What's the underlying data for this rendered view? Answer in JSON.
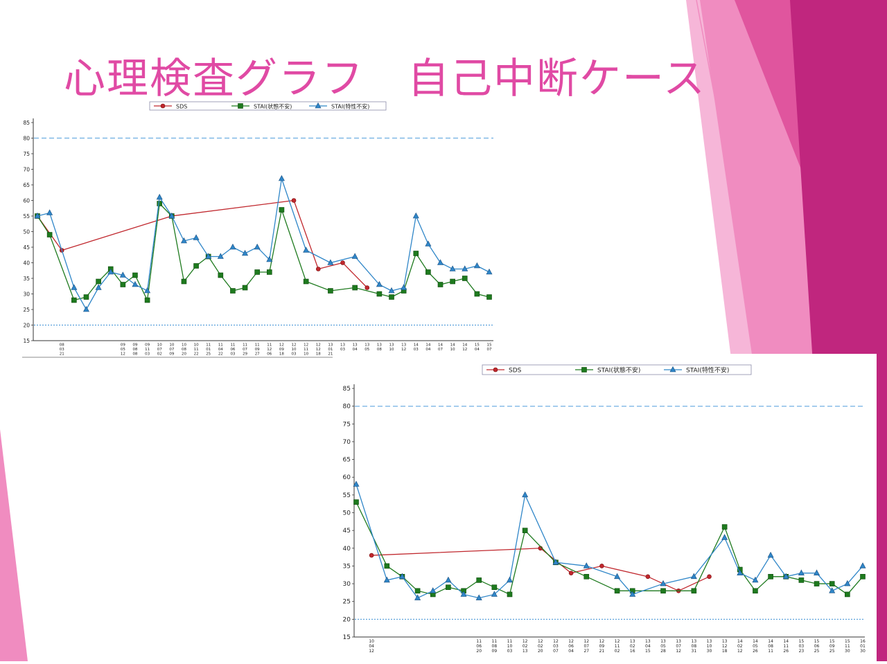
{
  "slide": {
    "title": "心理検査グラフ　自己中断ケース",
    "colors": {
      "title": "#e04aa4",
      "magenta_dark": "#c0267e",
      "magenta": "#e0559e",
      "pink": "#f08cc0",
      "pink_light": "#f6b6d8"
    }
  },
  "chart_data": [
    {
      "type": "line",
      "legend_position": "top",
      "yticks": [
        15,
        20,
        25,
        30,
        35,
        40,
        45,
        50,
        55,
        60,
        65,
        70,
        75,
        80,
        85
      ],
      "ylim": [
        15,
        85
      ],
      "reference_lines": [
        {
          "y": 80,
          "style": "dashed",
          "color": "#7fb8e6"
        },
        {
          "y": 20,
          "style": "dotted",
          "color": "#3b8fd4"
        }
      ],
      "x_count": 38,
      "x_tick_labels": [
        {
          "i": 2,
          "label": "08 03 21"
        },
        {
          "i": 7,
          "label": "09 05 12"
        },
        {
          "i": 8,
          "label": "09 08 08"
        },
        {
          "i": 9,
          "label": "09 11 03"
        },
        {
          "i": 10,
          "label": "10 07 02"
        },
        {
          "i": 11,
          "label": "10 07 09"
        },
        {
          "i": 12,
          "label": "10 08 20"
        },
        {
          "i": 13,
          "label": "10 11 22"
        },
        {
          "i": 14,
          "label": "11 01 25"
        },
        {
          "i": 15,
          "label": "11 04 22"
        },
        {
          "i": 16,
          "label": "11 06 03"
        },
        {
          "i": 17,
          "label": "11 07 29"
        },
        {
          "i": 18,
          "label": "11 09 27"
        },
        {
          "i": 19,
          "label": "11 12 06"
        },
        {
          "i": 20,
          "label": "12 09 18"
        },
        {
          "i": 21,
          "label": "12 10 03"
        },
        {
          "i": 22,
          "label": "12 11 10"
        },
        {
          "i": 23,
          "label": "12 12 18"
        },
        {
          "i": 24,
          "label": "13 01 21"
        },
        {
          "i": 25,
          "label": "13 03"
        },
        {
          "i": 26,
          "label": "13 04"
        },
        {
          "i": 27,
          "label": "13 05"
        },
        {
          "i": 28,
          "label": "13 08"
        },
        {
          "i": 29,
          "label": "13 10"
        },
        {
          "i": 30,
          "label": "13 12"
        },
        {
          "i": 31,
          "label": "14 03"
        },
        {
          "i": 32,
          "label": "14 04"
        },
        {
          "i": 33,
          "label": "14 07"
        },
        {
          "i": 34,
          "label": "14 10"
        },
        {
          "i": 35,
          "label": "14 12"
        },
        {
          "i": 36,
          "label": "15 04"
        },
        {
          "i": 37,
          "label": "15 07"
        }
      ],
      "series": [
        {
          "name": "SDS",
          "color": "#c0272d",
          "marker": "circle",
          "points": [
            [
              0,
              55
            ],
            [
              2,
              44
            ],
            [
              11,
              55
            ],
            [
              21,
              60
            ],
            [
              23,
              38
            ],
            [
              25,
              40
            ],
            [
              27,
              32
            ]
          ]
        },
        {
          "name": "STAI(状態不安)",
          "color": "#1e7a1e",
          "marker": "square",
          "points": [
            [
              0,
              55
            ],
            [
              1,
              49
            ],
            [
              3,
              28
            ],
            [
              4,
              29
            ],
            [
              5,
              34
            ],
            [
              6,
              38
            ],
            [
              7,
              33
            ],
            [
              8,
              36
            ],
            [
              9,
              28
            ],
            [
              10,
              59
            ],
            [
              11,
              55
            ],
            [
              12,
              34
            ],
            [
              13,
              39
            ],
            [
              14,
              42
            ],
            [
              15,
              36
            ],
            [
              16,
              31
            ],
            [
              17,
              32
            ],
            [
              18,
              37
            ],
            [
              19,
              37
            ],
            [
              20,
              57
            ],
            [
              22,
              34
            ],
            [
              24,
              31
            ],
            [
              26,
              32
            ],
            [
              28,
              30
            ],
            [
              29,
              29
            ],
            [
              30,
              31
            ],
            [
              31,
              43
            ],
            [
              32,
              37
            ],
            [
              33,
              33
            ],
            [
              34,
              34
            ],
            [
              35,
              35
            ],
            [
              36,
              30
            ],
            [
              37,
              29
            ]
          ]
        },
        {
          "name": "STAI(特性不安)",
          "color": "#2f86c8",
          "marker": "triangle",
          "points": [
            [
              0,
              55
            ],
            [
              1,
              56
            ],
            [
              3,
              32
            ],
            [
              4,
              25
            ],
            [
              5,
              32
            ],
            [
              6,
              37
            ],
            [
              7,
              36
            ],
            [
              8,
              33
            ],
            [
              9,
              31
            ],
            [
              10,
              61
            ],
            [
              11,
              55
            ],
            [
              12,
              47
            ],
            [
              13,
              48
            ],
            [
              14,
              42
            ],
            [
              15,
              42
            ],
            [
              16,
              45
            ],
            [
              17,
              43
            ],
            [
              18,
              45
            ],
            [
              19,
              41
            ],
            [
              20,
              67
            ],
            [
              22,
              44
            ],
            [
              24,
              40
            ],
            [
              26,
              42
            ],
            [
              28,
              33
            ],
            [
              29,
              31
            ],
            [
              30,
              32
            ],
            [
              31,
              55
            ],
            [
              32,
              46
            ],
            [
              33,
              40
            ],
            [
              34,
              38
            ],
            [
              35,
              38
            ],
            [
              36,
              39
            ],
            [
              37,
              37
            ]
          ]
        }
      ]
    },
    {
      "type": "line",
      "legend_position": "top",
      "yticks": [
        15,
        20,
        25,
        30,
        35,
        40,
        45,
        50,
        55,
        60,
        65,
        70,
        75,
        80,
        85
      ],
      "ylim": [
        15,
        85
      ],
      "reference_lines": [
        {
          "y": 80,
          "style": "dashed",
          "color": "#7fb8e6"
        },
        {
          "y": 20,
          "style": "dotted",
          "color": "#3b8fd4"
        }
      ],
      "x_count": 34,
      "x_tick_labels": [
        {
          "i": 1,
          "label": "10 04 12"
        },
        {
          "i": 8,
          "label": "11 06 20"
        },
        {
          "i": 9,
          "label": "11 08 09"
        },
        {
          "i": 10,
          "label": "11 10 03"
        },
        {
          "i": 11,
          "label": "12 02 13"
        },
        {
          "i": 12,
          "label": "12 02 20"
        },
        {
          "i": 13,
          "label": "12 03 07"
        },
        {
          "i": 14,
          "label": "12 06 04"
        },
        {
          "i": 15,
          "label": "12 07 27"
        },
        {
          "i": 16,
          "label": "12 09 21"
        },
        {
          "i": 17,
          "label": "12 11 02"
        },
        {
          "i": 18,
          "label": "13 02 16"
        },
        {
          "i": 19,
          "label": "13 04 15"
        },
        {
          "i": 20,
          "label": "13 05 28"
        },
        {
          "i": 21,
          "label": "13 07 12"
        },
        {
          "i": 22,
          "label": "13 08 31"
        },
        {
          "i": 23,
          "label": "13 10 30"
        },
        {
          "i": 24,
          "label": "13 12 18"
        },
        {
          "i": 25,
          "label": "14 02 12"
        },
        {
          "i": 26,
          "label": "14 05 26"
        },
        {
          "i": 27,
          "label": "14 08 11"
        },
        {
          "i": 28,
          "label": "14 11 26"
        },
        {
          "i": 29,
          "label": "15 03 23"
        },
        {
          "i": 30,
          "label": "15 06 25"
        },
        {
          "i": 31,
          "label": "15 09 25"
        },
        {
          "i": 32,
          "label": "15 11 30"
        },
        {
          "i": 33,
          "label": "16 01 30"
        }
      ],
      "series": [
        {
          "name": "SDS",
          "color": "#c0272d",
          "marker": "circle",
          "points": [
            [
              1,
              38
            ],
            [
              12,
              40
            ],
            [
              14,
              33
            ],
            [
              16,
              35
            ],
            [
              19,
              32
            ],
            [
              21,
              28
            ],
            [
              23,
              32
            ]
          ]
        },
        {
          "name": "STAI(状態不安)",
          "color": "#1e7a1e",
          "marker": "square",
          "points": [
            [
              0,
              53
            ],
            [
              2,
              35
            ],
            [
              3,
              32
            ],
            [
              4,
              28
            ],
            [
              5,
              27
            ],
            [
              6,
              29
            ],
            [
              7,
              28
            ],
            [
              8,
              31
            ],
            [
              9,
              29
            ],
            [
              10,
              27
            ],
            [
              11,
              45
            ],
            [
              13,
              36
            ],
            [
              15,
              32
            ],
            [
              17,
              28
            ],
            [
              18,
              28
            ],
            [
              20,
              28
            ],
            [
              22,
              28
            ],
            [
              24,
              46
            ],
            [
              25,
              34
            ],
            [
              26,
              28
            ],
            [
              27,
              32
            ],
            [
              28,
              32
            ],
            [
              29,
              31
            ],
            [
              30,
              30
            ],
            [
              31,
              30
            ],
            [
              32,
              27
            ],
            [
              33,
              32
            ]
          ]
        },
        {
          "name": "STAI(特性不安)",
          "color": "#2f86c8",
          "marker": "triangle",
          "points": [
            [
              0,
              58
            ],
            [
              2,
              31
            ],
            [
              3,
              32
            ],
            [
              4,
              26
            ],
            [
              5,
              28
            ],
            [
              6,
              31
            ],
            [
              7,
              27
            ],
            [
              8,
              26
            ],
            [
              9,
              27
            ],
            [
              10,
              31
            ],
            [
              11,
              55
            ],
            [
              13,
              36
            ],
            [
              15,
              35
            ],
            [
              17,
              32
            ],
            [
              18,
              27
            ],
            [
              20,
              30
            ],
            [
              22,
              32
            ],
            [
              24,
              43
            ],
            [
              25,
              33
            ],
            [
              26,
              31
            ],
            [
              27,
              38
            ],
            [
              28,
              32
            ],
            [
              29,
              33
            ],
            [
              30,
              33
            ],
            [
              31,
              28
            ],
            [
              32,
              30
            ],
            [
              33,
              35
            ]
          ]
        }
      ]
    }
  ]
}
